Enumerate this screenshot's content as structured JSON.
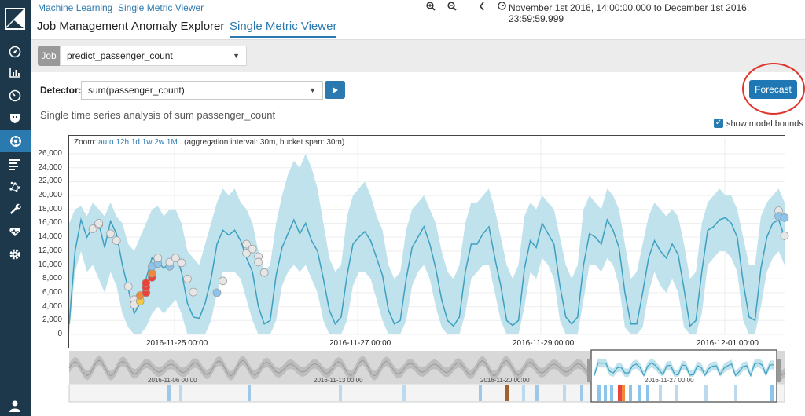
{
  "breadcrumb": {
    "root": "Machine Learning",
    "separator": "/",
    "current": "Single Metric Viewer"
  },
  "time_range": "November 1st 2016, 14:00:00.000 to December 1st 2016, 23:59:59.999",
  "tabs": [
    {
      "label": "Job Management",
      "active": false
    },
    {
      "label": "Anomaly Explorer",
      "active": false
    },
    {
      "label": "Single Metric Viewer",
      "active": true
    }
  ],
  "job": {
    "label": "Job",
    "value": "predict_passenger_count"
  },
  "detector": {
    "label": "Detector:",
    "value": "sum(passenger_count)"
  },
  "forecast_label": "Forecast",
  "subtitle": "Single time series analysis of sum passenger_count",
  "model_bounds": {
    "label": "show model bounds",
    "checked": true
  },
  "zoom": {
    "label": "Zoom:",
    "options": [
      "auto",
      "12h",
      "1d",
      "1w",
      "2w",
      "1M"
    ],
    "info": "(aggregation interval: 30m, bucket span: 30m)"
  },
  "colors": {
    "sidebar": "#1d384b",
    "accent": "#2a7ab0",
    "line": "#3ea0c0",
    "band": "#bfe2ec",
    "anomaly_critical": "#e8443a",
    "anomaly_major": "#f08a3a",
    "anomaly_minor": "#f5c842",
    "anomaly_warning": "#8cc4ec"
  },
  "icons": [
    "compass-icon",
    "bar-chart-icon",
    "gauge-icon",
    "shield-icon",
    "ml-icon",
    "list-icon",
    "graph-icon",
    "wrench-icon",
    "heartbeat-icon",
    "gear-icon",
    "user-icon"
  ],
  "chart_data": {
    "type": "line",
    "ylim": [
      0,
      26000
    ],
    "y_ticks": [
      "0",
      "2,000",
      "4,000",
      "6,000",
      "8,000",
      "10,000",
      "12,000",
      "14,000",
      "16,000",
      "18,000",
      "20,000",
      "22,000",
      "24,000",
      "26,000"
    ],
    "x_ticks": [
      "2016-11-25 00:00",
      "2016-11-27 00:00",
      "2016-11-29 00:00",
      "2016-12-01 00:00"
    ],
    "grid": true,
    "series": [
      {
        "values": [
          1500,
          12000,
          16500,
          14000,
          15500,
          16000,
          12500,
          16300,
          14500,
          10000,
          6500,
          3000,
          4500,
          8000,
          11000,
          10500,
          9500,
          10500,
          11500,
          9000,
          4500,
          2500,
          2300,
          4500,
          8000,
          13000,
          15000,
          14300,
          15000,
          13500,
          11000,
          9000,
          4000,
          1500,
          2000,
          8500,
          12500,
          14500,
          16500,
          14500,
          16000,
          13500,
          12000,
          8000,
          3500,
          1500,
          2500,
          8500,
          13000,
          14000,
          14800,
          13500,
          11000,
          8500,
          3500,
          1500,
          2000,
          8000,
          12500,
          14000,
          15500,
          13000,
          9500,
          5000,
          2000,
          1200,
          2500,
          9000,
          13000,
          13000,
          14500,
          15500,
          11000,
          7000,
          2000,
          1300,
          2000,
          9500,
          13500,
          12500,
          16000,
          14500,
          13000,
          7000,
          2500,
          1500,
          2500,
          10000,
          14500,
          14000,
          13000,
          16500,
          15000,
          12500,
          6000,
          1500,
          1500,
          6000,
          11000,
          13500,
          12000,
          11000,
          13000,
          11500,
          6500,
          1200,
          2000,
          9000,
          15000,
          15500,
          16500,
          16800,
          16000,
          14000,
          7500,
          2500,
          2000,
          9500,
          14000,
          16000,
          16500,
          14000
        ]
      },
      {
        "name": "model bounds",
        "values": [
          [
            0,
            16000
          ],
          [
            9000,
            18000
          ],
          [
            12000,
            18500
          ],
          [
            9000,
            17000
          ],
          [
            10000,
            19000
          ],
          [
            8000,
            18000
          ],
          [
            6000,
            17000
          ],
          [
            9000,
            19000
          ],
          [
            7000,
            17000
          ],
          [
            3000,
            16000
          ],
          [
            1000,
            13000
          ],
          [
            0,
            12000
          ],
          [
            0,
            14000
          ],
          [
            1000,
            16000
          ],
          [
            3000,
            18000
          ],
          [
            4000,
            18500
          ],
          [
            3000,
            17000
          ],
          [
            4000,
            18000
          ],
          [
            5000,
            18000
          ],
          [
            3000,
            16000
          ],
          [
            0,
            12000
          ],
          [
            0,
            11000
          ],
          [
            0,
            10000
          ],
          [
            0,
            13000
          ],
          [
            2000,
            16000
          ],
          [
            6000,
            19000
          ],
          [
            9000,
            21000
          ],
          [
            9000,
            20000
          ],
          [
            9000,
            21000
          ],
          [
            8000,
            19000
          ],
          [
            5000,
            18000
          ],
          [
            2000,
            16000
          ],
          [
            0,
            12000
          ],
          [
            0,
            9000
          ],
          [
            0,
            10000
          ],
          [
            2000,
            16000
          ],
          [
            7000,
            20000
          ],
          [
            9000,
            23000
          ],
          [
            10000,
            25000
          ],
          [
            9000,
            24000
          ],
          [
            10000,
            26000
          ],
          [
            8000,
            24000
          ],
          [
            6000,
            21000
          ],
          [
            2000,
            16000
          ],
          [
            0,
            11000
          ],
          [
            0,
            9000
          ],
          [
            0,
            10000
          ],
          [
            2000,
            17000
          ],
          [
            7000,
            20000
          ],
          [
            9000,
            21000
          ],
          [
            9000,
            22000
          ],
          [
            8000,
            20000
          ],
          [
            5000,
            17000
          ],
          [
            2000,
            15000
          ],
          [
            0,
            10000
          ],
          [
            0,
            8000
          ],
          [
            0,
            9000
          ],
          [
            2000,
            15000
          ],
          [
            7000,
            18000
          ],
          [
            9000,
            19000
          ],
          [
            10000,
            20000
          ],
          [
            8000,
            18000
          ],
          [
            4000,
            16000
          ],
          [
            1000,
            12000
          ],
          [
            0,
            9000
          ],
          [
            0,
            8000
          ],
          [
            0,
            10000
          ],
          [
            3000,
            16000
          ],
          [
            8000,
            19000
          ],
          [
            9000,
            19000
          ],
          [
            10000,
            20000
          ],
          [
            10000,
            21000
          ],
          [
            6000,
            18000
          ],
          [
            2000,
            14000
          ],
          [
            0,
            10000
          ],
          [
            0,
            8000
          ],
          [
            0,
            10000
          ],
          [
            4000,
            17000
          ],
          [
            9000,
            19000
          ],
          [
            8000,
            18000
          ],
          [
            11000,
            20000
          ],
          [
            10000,
            19000
          ],
          [
            8000,
            18000
          ],
          [
            2000,
            14000
          ],
          [
            0,
            10000
          ],
          [
            0,
            8000
          ],
          [
            0,
            10000
          ],
          [
            5000,
            18000
          ],
          [
            10000,
            20000
          ],
          [
            10000,
            19000
          ],
          [
            9000,
            18000
          ],
          [
            11000,
            21000
          ],
          [
            10000,
            20000
          ],
          [
            7000,
            18000
          ],
          [
            1000,
            13000
          ],
          [
            0,
            8000
          ],
          [
            0,
            9000
          ],
          [
            1000,
            13000
          ],
          [
            6000,
            17000
          ],
          [
            9000,
            19000
          ],
          [
            7000,
            18000
          ],
          [
            6000,
            17000
          ],
          [
            8000,
            18000
          ],
          [
            6000,
            17000
          ],
          [
            1000,
            13000
          ],
          [
            0,
            8000
          ],
          [
            0,
            9000
          ],
          [
            3000,
            16000
          ],
          [
            10000,
            19000
          ],
          [
            11000,
            20000
          ],
          [
            12000,
            21000
          ],
          [
            12000,
            20000
          ],
          [
            11000,
            20000
          ],
          [
            9000,
            18000
          ],
          [
            2000,
            14000
          ],
          [
            0,
            10000
          ],
          [
            0,
            10000
          ],
          [
            4000,
            17000
          ],
          [
            9000,
            19000
          ],
          [
            11000,
            20000
          ],
          [
            12000,
            21000
          ],
          [
            10000,
            19000
          ]
        ]
      }
    ],
    "anomalies": [
      {
        "i": 4,
        "value": 15200,
        "severity": "none"
      },
      {
        "i": 5,
        "value": 15800,
        "severity": "none"
      },
      {
        "i": 5,
        "value": 16000,
        "severity": "none"
      },
      {
        "i": 7,
        "value": 14500,
        "severity": "none"
      },
      {
        "i": 8,
        "value": 13500,
        "severity": "none"
      },
      {
        "i": 10,
        "value": 6900,
        "severity": "none"
      },
      {
        "i": 11,
        "value": 5000,
        "severity": "none"
      },
      {
        "i": 11,
        "value": 4300,
        "severity": "none"
      },
      {
        "i": 12,
        "value": 4800,
        "severity": "minor"
      },
      {
        "i": 12,
        "value": 5600,
        "severity": "major"
      },
      {
        "i": 13,
        "value": 6000,
        "severity": "critical"
      },
      {
        "i": 13,
        "value": 6800,
        "severity": "critical"
      },
      {
        "i": 13,
        "value": 7400,
        "severity": "critical"
      },
      {
        "i": 14,
        "value": 8200,
        "severity": "critical"
      },
      {
        "i": 14,
        "value": 8800,
        "severity": "major"
      },
      {
        "i": 14,
        "value": 9800,
        "severity": "warning"
      },
      {
        "i": 15,
        "value": 10200,
        "severity": "warning"
      },
      {
        "i": 15,
        "value": 11000,
        "severity": "none"
      },
      {
        "i": 17,
        "value": 9800,
        "severity": "warning"
      },
      {
        "i": 17,
        "value": 10400,
        "severity": "none"
      },
      {
        "i": 18,
        "value": 11000,
        "severity": "none"
      },
      {
        "i": 19,
        "value": 10300,
        "severity": "none"
      },
      {
        "i": 20,
        "value": 8000,
        "severity": "none"
      },
      {
        "i": 21,
        "value": 6100,
        "severity": "none"
      },
      {
        "i": 25,
        "value": 6000,
        "severity": "warning"
      },
      {
        "i": 26,
        "value": 7700,
        "severity": "none"
      },
      {
        "i": 30,
        "value": 13000,
        "severity": "none"
      },
      {
        "i": 30,
        "value": 11700,
        "severity": "none"
      },
      {
        "i": 31,
        "value": 12300,
        "severity": "none"
      },
      {
        "i": 32,
        "value": 11200,
        "severity": "none"
      },
      {
        "i": 32,
        "value": 10400,
        "severity": "none"
      },
      {
        "i": 33,
        "value": 8900,
        "severity": "none"
      },
      {
        "i": 120,
        "value": 17800,
        "severity": "none"
      },
      {
        "i": 120,
        "value": 17000,
        "severity": "warning"
      },
      {
        "i": 121,
        "value": 16800,
        "severity": "warning"
      },
      {
        "i": 121,
        "value": 14200,
        "severity": "none"
      }
    ]
  },
  "context": {
    "x_ticks": [
      "2016-11-06 00:00",
      "2016-11-13 00:00",
      "2016-11-20 00:00",
      "2016-11-27 00:00"
    ]
  }
}
